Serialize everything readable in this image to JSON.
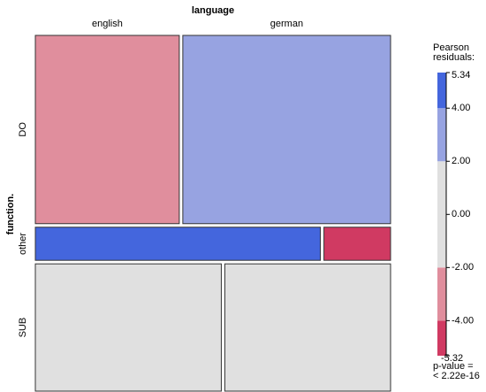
{
  "chart_data": {
    "type": "mosaic",
    "x_label": "language",
    "y_label": "function.",
    "columns": [
      "english",
      "german"
    ],
    "rows": [
      "DO",
      "other",
      "SUB"
    ],
    "counts": [
      [
        221,
        319
      ],
      [
        77,
        18
      ],
      [
        193,
        172
      ]
    ],
    "residuals": [
      [
        -3,
        3
      ],
      [
        5,
        -5
      ],
      [
        0,
        0
      ]
    ],
    "legend_title": [
      "Pearson",
      "residuals:"
    ],
    "legend_lim": [
      -5.32,
      5.34
    ],
    "legend_breaks": [
      -5.32,
      -4,
      -2,
      2,
      4,
      5.34
    ],
    "legend_colors": [
      "#d03a62",
      "#e08e9d",
      "#e0e0e0",
      "#97a3e1",
      "#4466dd"
    ],
    "legend_ticks": [
      5.34,
      {
        "value": 4,
        "label": "4.00"
      },
      {
        "value": 2,
        "label": "2.00"
      },
      {
        "value": 0,
        "label": "0.00"
      },
      {
        "value": -2,
        "label": "-2.00"
      },
      {
        "value": -4,
        "label": "-4.00"
      },
      -5.32
    ],
    "p_value_text": [
      "p-value =",
      "< 2.22e-16"
    ]
  }
}
